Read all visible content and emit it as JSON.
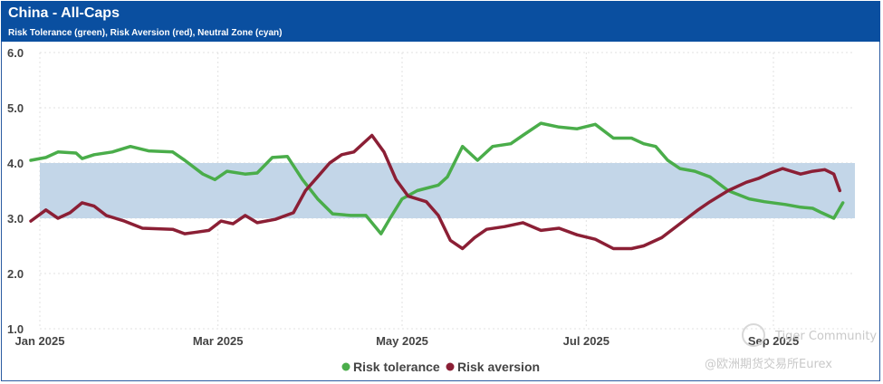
{
  "header": {
    "title": "China - All-Caps",
    "subtitle": "Risk Tolerance (green), Risk Aversion (red), Neutral Zone (cyan)"
  },
  "colors": {
    "header_bg": "#0a4fa0",
    "tolerance": "#4aad4a",
    "aversion": "#8b1f35",
    "neutral": "#c3d6e8"
  },
  "watermark": {
    "brand": "Tiger Community",
    "source": "@欧洲期货交易所Eurex"
  },
  "chart_data": {
    "type": "line",
    "ylim": [
      1.0,
      6.0
    ],
    "yticks": [
      "6.0",
      "5.0",
      "4.0",
      "3.0",
      "2.0",
      "1.0"
    ],
    "x_range_days": [
      0,
      270
    ],
    "xticks": [
      {
        "label": "Jan 2025",
        "day": 0
      },
      {
        "label": "Mar 2025",
        "day": 59
      },
      {
        "label": "May 2025",
        "day": 120
      },
      {
        "label": "Jul 2025",
        "day": 181
      },
      {
        "label": "Sep 2025",
        "day": 243
      }
    ],
    "neutral_zone": [
      3.0,
      4.0
    ],
    "series": [
      {
        "name": "Risk tolerance",
        "color": "#4aad4a",
        "points": [
          [
            -3,
            4.05
          ],
          [
            2,
            4.1
          ],
          [
            6,
            4.2
          ],
          [
            12,
            4.18
          ],
          [
            14,
            4.08
          ],
          [
            18,
            4.15
          ],
          [
            24,
            4.2
          ],
          [
            30,
            4.3
          ],
          [
            36,
            4.22
          ],
          [
            44,
            4.2
          ],
          [
            48,
            4.05
          ],
          [
            54,
            3.8
          ],
          [
            58,
            3.7
          ],
          [
            62,
            3.85
          ],
          [
            68,
            3.8
          ],
          [
            72,
            3.82
          ],
          [
            77,
            4.1
          ],
          [
            82,
            4.12
          ],
          [
            87,
            3.7
          ],
          [
            92,
            3.35
          ],
          [
            97,
            3.08
          ],
          [
            103,
            3.05
          ],
          [
            108,
            3.05
          ],
          [
            113,
            2.72
          ],
          [
            116,
            3.0
          ],
          [
            120,
            3.35
          ],
          [
            125,
            3.5
          ],
          [
            132,
            3.6
          ],
          [
            135,
            3.75
          ],
          [
            140,
            4.3
          ],
          [
            145,
            4.05
          ],
          [
            150,
            4.3
          ],
          [
            156,
            4.35
          ],
          [
            160,
            4.5
          ],
          [
            166,
            4.72
          ],
          [
            172,
            4.65
          ],
          [
            178,
            4.62
          ],
          [
            184,
            4.7
          ],
          [
            190,
            4.45
          ],
          [
            196,
            4.45
          ],
          [
            200,
            4.35
          ],
          [
            204,
            4.3
          ],
          [
            208,
            4.05
          ],
          [
            212,
            3.9
          ],
          [
            217,
            3.85
          ],
          [
            222,
            3.75
          ],
          [
            228,
            3.5
          ],
          [
            235,
            3.35
          ],
          [
            240,
            3.3
          ],
          [
            247,
            3.25
          ],
          [
            252,
            3.2
          ],
          [
            256,
            3.18
          ],
          [
            259,
            3.1
          ],
          [
            263,
            3.0
          ],
          [
            266,
            3.28
          ]
        ]
      },
      {
        "name": "Risk aversion",
        "color": "#8b1f35",
        "points": [
          [
            -3,
            2.95
          ],
          [
            2,
            3.15
          ],
          [
            6,
            3.0
          ],
          [
            10,
            3.1
          ],
          [
            14,
            3.28
          ],
          [
            18,
            3.22
          ],
          [
            22,
            3.05
          ],
          [
            28,
            2.95
          ],
          [
            34,
            2.82
          ],
          [
            44,
            2.8
          ],
          [
            48,
            2.72
          ],
          [
            52,
            2.75
          ],
          [
            56,
            2.78
          ],
          [
            60,
            2.95
          ],
          [
            64,
            2.9
          ],
          [
            68,
            3.05
          ],
          [
            72,
            2.92
          ],
          [
            78,
            2.98
          ],
          [
            84,
            3.1
          ],
          [
            88,
            3.5
          ],
          [
            92,
            3.75
          ],
          [
            96,
            4.0
          ],
          [
            100,
            4.15
          ],
          [
            104,
            4.2
          ],
          [
            110,
            4.5
          ],
          [
            114,
            4.2
          ],
          [
            118,
            3.7
          ],
          [
            122,
            3.4
          ],
          [
            128,
            3.3
          ],
          [
            132,
            3.05
          ],
          [
            136,
            2.6
          ],
          [
            140,
            2.45
          ],
          [
            144,
            2.65
          ],
          [
            148,
            2.8
          ],
          [
            154,
            2.85
          ],
          [
            160,
            2.92
          ],
          [
            166,
            2.78
          ],
          [
            172,
            2.82
          ],
          [
            178,
            2.7
          ],
          [
            184,
            2.62
          ],
          [
            190,
            2.45
          ],
          [
            196,
            2.45
          ],
          [
            200,
            2.5
          ],
          [
            206,
            2.65
          ],
          [
            212,
            2.9
          ],
          [
            218,
            3.15
          ],
          [
            222,
            3.3
          ],
          [
            228,
            3.5
          ],
          [
            234,
            3.65
          ],
          [
            238,
            3.72
          ],
          [
            242,
            3.82
          ],
          [
            246,
            3.9
          ],
          [
            252,
            3.8
          ],
          [
            256,
            3.85
          ],
          [
            260,
            3.88
          ],
          [
            263,
            3.8
          ],
          [
            265,
            3.5
          ]
        ]
      }
    ]
  }
}
